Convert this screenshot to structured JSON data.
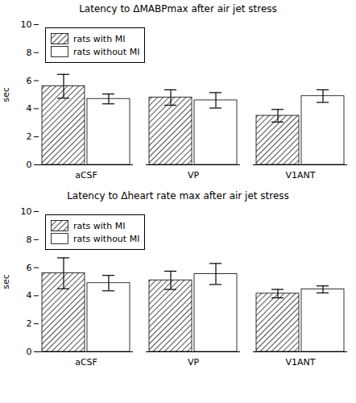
{
  "chart_data": [
    {
      "type": "bar",
      "title": "Latency to ΔMABPmax after air jet stress",
      "categories": [
        "aCSF",
        "VP",
        "V1ANT"
      ],
      "series": [
        {
          "name": "rats with MI",
          "color": "#ffffff",
          "values": [
            5.6,
            4.8,
            3.5
          ],
          "errors": [
            0.85,
            0.55,
            0.45
          ]
        },
        {
          "name": "rats without MI",
          "color": "#ffffff",
          "values": [
            4.7,
            4.6,
            4.9
          ],
          "errors": [
            0.35,
            0.55,
            0.45
          ]
        }
      ],
      "ylabel": "sec",
      "ylim": [
        0,
        10
      ],
      "yticks": [
        0,
        2,
        4,
        6,
        8,
        10
      ],
      "grid": false,
      "legend": "upper left"
    },
    {
      "type": "bar",
      "title": "Latency to Δheart rate max after air jet stress",
      "categories": [
        "aCSF",
        "VP",
        "V1ANT"
      ],
      "series": [
        {
          "name": "rats with MI",
          "color": "#ffffff",
          "values": [
            5.6,
            5.1,
            4.15
          ],
          "errors": [
            1.1,
            0.65,
            0.3
          ]
        },
        {
          "name": "rats without MI",
          "color": "#ffffff",
          "values": [
            4.9,
            5.55,
            4.45
          ],
          "errors": [
            0.55,
            0.75,
            0.25
          ]
        }
      ],
      "ylabel": "sec",
      "ylim": [
        0,
        10
      ],
      "yticks": [
        0,
        2,
        4,
        6,
        8,
        10
      ],
      "grid": false,
      "legend": "upper left"
    }
  ]
}
